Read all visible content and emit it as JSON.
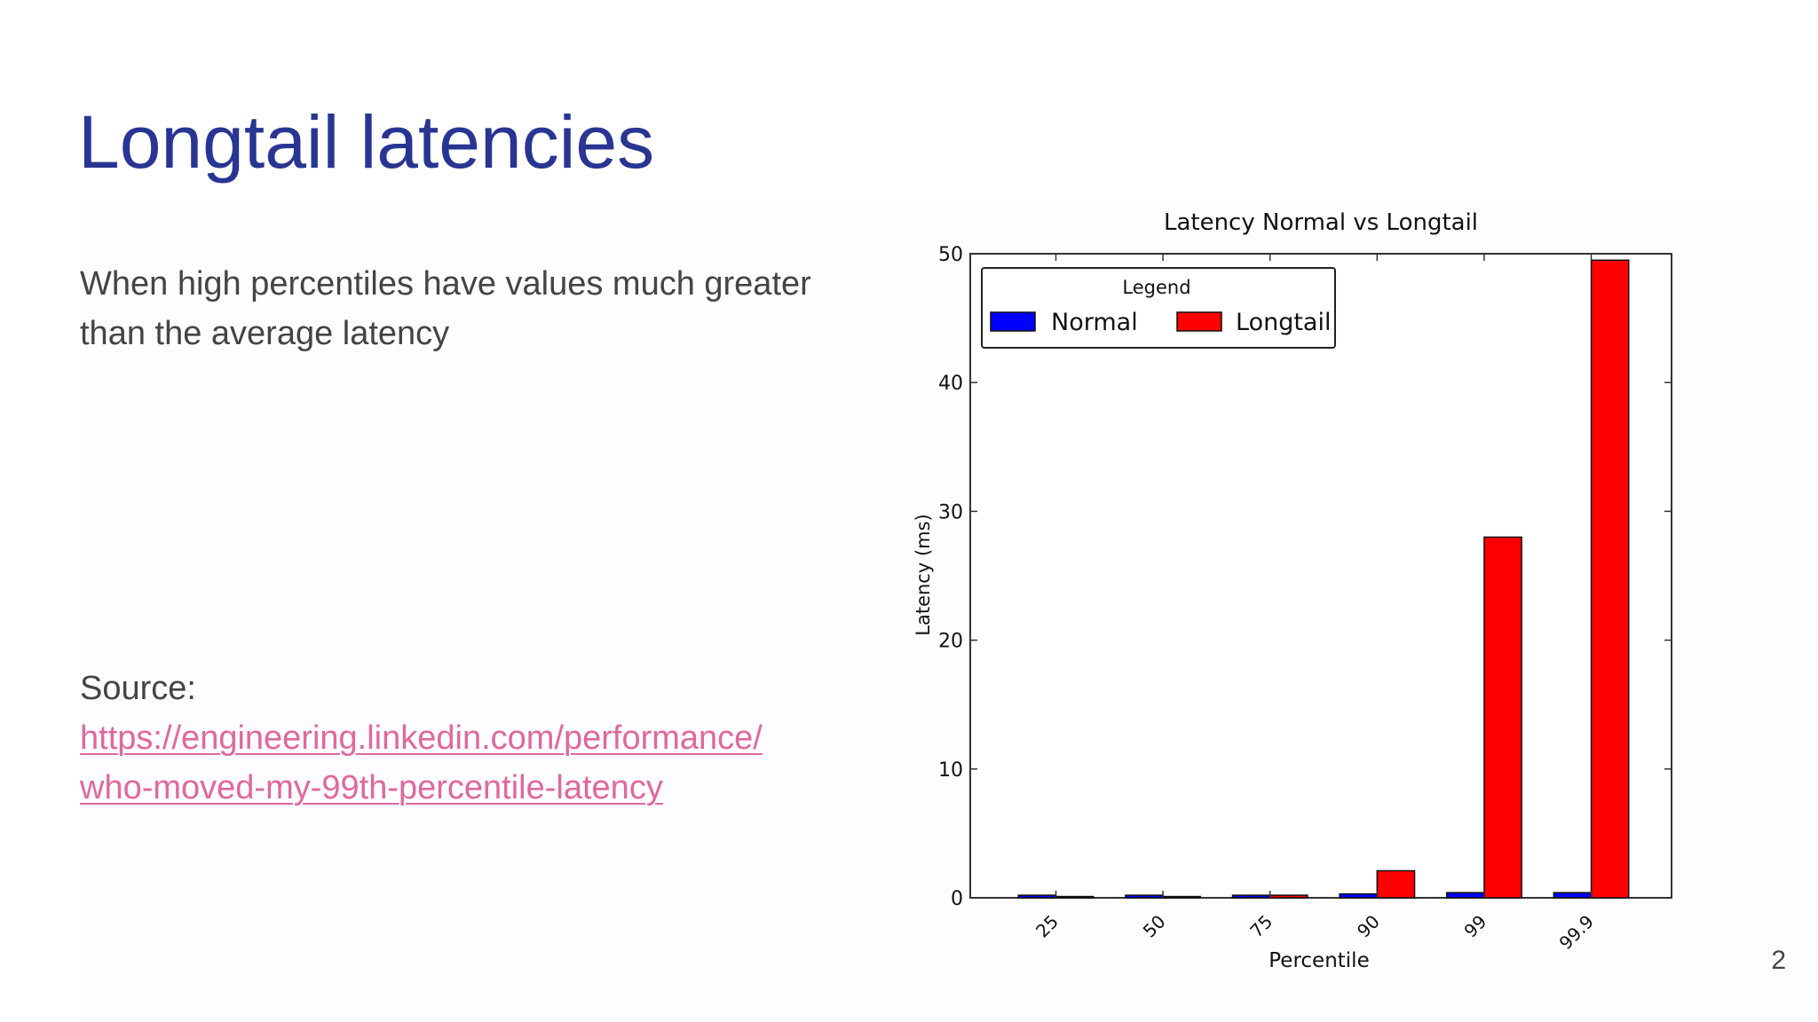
{
  "slide": {
    "title": "Longtail latencies",
    "body_line1": "When high percentiles have values much greater",
    "body_line2": "than the average latency",
    "source_label": "Source:",
    "source_url_line1": "https://engineering.linkedin.com/performance/",
    "source_url_line2": "who-moved-my-99th-percentile-latency",
    "page_number": "2"
  },
  "colors": {
    "title": "#283593",
    "text": "#444444",
    "link": "#e0679f",
    "normal_series": "#0000ff",
    "longtail_series": "#ff0000"
  },
  "chart_data": {
    "type": "bar",
    "title": "Latency Normal vs Longtail",
    "xlabel": "Percentile",
    "ylabel": "Latency (ms)",
    "categories": [
      "25",
      "50",
      "75",
      "90",
      "99",
      "99.9"
    ],
    "series": [
      {
        "name": "Normal",
        "color": "#0000ff",
        "values": [
          0.2,
          0.2,
          0.2,
          0.3,
          0.4,
          0.4
        ]
      },
      {
        "name": "Longtail",
        "color": "#ff0000",
        "values": [
          0.1,
          0.1,
          0.2,
          2.1,
          28.0,
          49.5
        ]
      }
    ],
    "ylim": [
      0,
      50
    ],
    "yticks": [
      0,
      10,
      20,
      30,
      40,
      50
    ],
    "legend": {
      "title": "Legend",
      "position": "top-left"
    },
    "grid": false
  }
}
